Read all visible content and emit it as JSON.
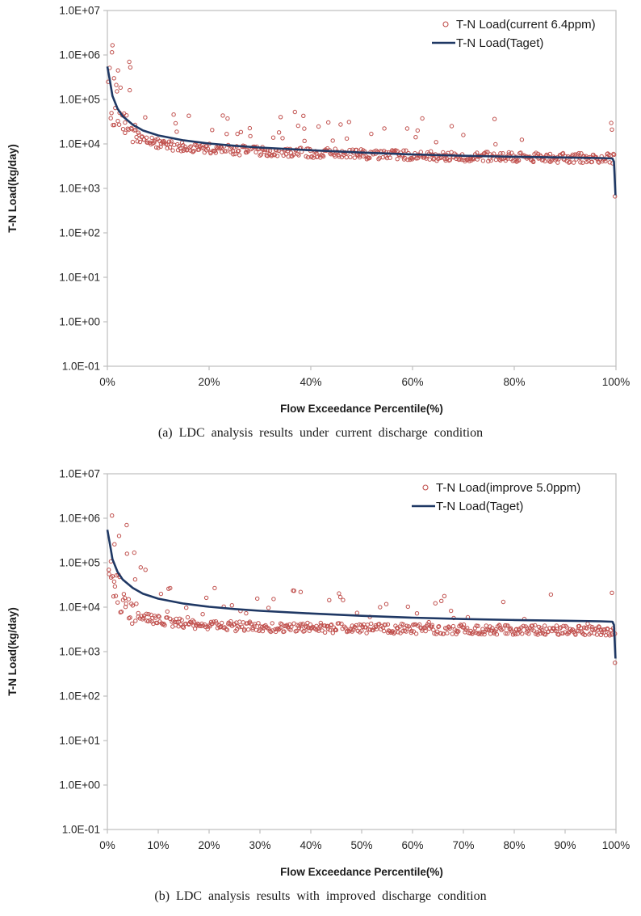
{
  "style": {
    "background": "#FFFFFF",
    "frame_color": "#BFBFBF",
    "tick_text_color": "#262626",
    "axis_title_color": "#1A1A1A",
    "scatter_color": "#C0504D",
    "line_color": "#1F3864"
  },
  "chart_data": [
    {
      "id": "a",
      "type": "scatter",
      "caption": "(a) LDC analysis results under current discharge condition",
      "xlabel": "Flow Exceedance Percentile(%)",
      "ylabel": "T-N Load(kg/day)",
      "grid": false,
      "x_axis": {
        "min": 0,
        "max": 100,
        "tick_values": [
          0,
          20,
          40,
          60,
          80,
          100
        ],
        "tick_labels": [
          "0%",
          "20%",
          "40%",
          "60%",
          "80%",
          "100%"
        ]
      },
      "y_axis": {
        "scale": "log",
        "min": 0.1,
        "max": 10000000,
        "tick_labels": [
          "1.0E+07",
          "1.0E+06",
          "1.0E+05",
          "1.0E+04",
          "1.0E+03",
          "1.0E+02",
          "1.0E+01",
          "1.0E+00",
          "1.0E-01"
        ]
      },
      "legend": {
        "position": "top-right-inside",
        "anchor_x": 552
      },
      "series": [
        {
          "name": "T-N Load(current 6.4ppm)",
          "kind": "scatter",
          "marker": "open-circle",
          "color": "#C0504D",
          "seed": 7,
          "n": 540,
          "x_range": [
            0.25,
            99.7
          ],
          "median_curve": [
            [
              0.25,
              120000
            ],
            [
              0.7,
              80000
            ],
            [
              1.5,
              45000
            ],
            [
              2.5,
              30000
            ],
            [
              4,
              19000
            ],
            [
              6,
              13500
            ],
            [
              9,
              10500
            ],
            [
              14,
              8800
            ],
            [
              20,
              7800
            ],
            [
              30,
              6800
            ],
            [
              40,
              6300
            ],
            [
              50,
              5900
            ],
            [
              60,
              5500
            ],
            [
              70,
              5200
            ],
            [
              80,
              5000
            ],
            [
              90,
              4850
            ],
            [
              99.7,
              4700
            ]
          ],
          "jitter_decades": 0.11,
          "wide_zone": {
            "x_max": 6,
            "extra_decades": 0.4
          },
          "outliers": {
            "x_split": 8,
            "rate_near": 0.28,
            "rate_mid": 0.1,
            "x_far": 72,
            "rate_far": 0.03,
            "lift_min": 0.15,
            "lift_max": 0.85,
            "near_boost": 1.4
          },
          "extra_points": [
            [
              0.9,
              1150000
            ],
            [
              4.3,
              700000
            ],
            [
              2.1,
              450000
            ],
            [
              1.3,
              300000
            ],
            [
              61,
              20000
            ],
            [
              99.2,
              21000
            ],
            [
              99.8,
              660
            ]
          ]
        },
        {
          "name": "T-N Load(Taget)",
          "kind": "line",
          "color": "#1F3864",
          "width": 2.6,
          "points": [
            [
              0,
              550000
            ],
            [
              0.5,
              260000
            ],
            [
              1,
              120000
            ],
            [
              2,
              62000
            ],
            [
              3,
              42000
            ],
            [
              5,
              27000
            ],
            [
              7,
              20000
            ],
            [
              10,
              15500
            ],
            [
              15,
              12000
            ],
            [
              20,
              10200
            ],
            [
              25,
              9100
            ],
            [
              30,
              8300
            ],
            [
              40,
              7200
            ],
            [
              50,
              6400
            ],
            [
              60,
              5800
            ],
            [
              70,
              5400
            ],
            [
              80,
              5150
            ],
            [
              90,
              4950
            ],
            [
              97,
              4800
            ],
            [
              99.3,
              4700
            ],
            [
              99.6,
              4000
            ],
            [
              99.9,
              700
            ]
          ]
        }
      ]
    },
    {
      "id": "b",
      "type": "scatter",
      "caption": "(b) LDC analysis results with improved discharge condition",
      "xlabel": "Flow Exceedance Percentile(%)",
      "ylabel": "T-N Load(kg/day)",
      "grid": false,
      "x_axis": {
        "min": 0,
        "max": 100,
        "tick_values": [
          0,
          10,
          20,
          30,
          40,
          50,
          60,
          70,
          80,
          90,
          100
        ],
        "tick_labels": [
          "0%",
          "10%",
          "20%",
          "30%",
          "40%",
          "50%",
          "60%",
          "70%",
          "80%",
          "90%",
          "100%"
        ]
      },
      "y_axis": {
        "scale": "log",
        "min": 0.1,
        "max": 10000000,
        "tick_labels": [
          "1.0E+07",
          "1.0E+06",
          "1.0E+05",
          "1.0E+04",
          "1.0E+03",
          "1.0E+02",
          "1.0E+01",
          "1.0E+00",
          "1.0E-01"
        ]
      },
      "legend": {
        "position": "top-right-inside",
        "anchor_x": 527
      },
      "series": [
        {
          "name": "T-N Load(improve 5.0ppm)",
          "kind": "scatter",
          "marker": "open-circle",
          "color": "#C0504D",
          "seed": 13,
          "n": 540,
          "x_range": [
            0.25,
            99.7
          ],
          "median_curve": [
            [
              0.25,
              100000
            ],
            [
              0.7,
              60000
            ],
            [
              1.5,
              30000
            ],
            [
              2.5,
              17000
            ],
            [
              4,
              10000
            ],
            [
              6,
              7000
            ],
            [
              9,
              5300
            ],
            [
              14,
              4400
            ],
            [
              20,
              3900
            ],
            [
              30,
              3600
            ],
            [
              40,
              3450
            ],
            [
              50,
              3350
            ],
            [
              60,
              3250
            ],
            [
              70,
              3150
            ],
            [
              80,
              3080
            ],
            [
              90,
              3020
            ],
            [
              99.7,
              2980
            ]
          ],
          "jitter_decades": 0.11,
          "wide_zone": {
            "x_max": 6,
            "extra_decades": 0.4
          },
          "outliers": {
            "x_split": 8,
            "rate_near": 0.28,
            "rate_mid": 0.11,
            "x_far": 72,
            "rate_far": 0.03,
            "lift_min": 0.15,
            "lift_max": 0.85,
            "near_boost": 1.4
          },
          "extra_points": [
            [
              0.9,
              1150000
            ],
            [
              3.8,
              700000
            ],
            [
              2.3,
              400000
            ],
            [
              1.4,
              260000
            ],
            [
              38,
              22000
            ],
            [
              99.2,
              21000
            ],
            [
              99.8,
              560
            ]
          ]
        },
        {
          "name": "T-N Load(Taget)",
          "kind": "line",
          "color": "#1F3864",
          "width": 2.6,
          "points": [
            [
              0,
              550000
            ],
            [
              0.5,
              260000
            ],
            [
              1,
              120000
            ],
            [
              2,
              62000
            ],
            [
              3,
              42000
            ],
            [
              5,
              27000
            ],
            [
              7,
              20000
            ],
            [
              10,
              15500
            ],
            [
              15,
              12000
            ],
            [
              20,
              10200
            ],
            [
              25,
              9100
            ],
            [
              30,
              8300
            ],
            [
              40,
              7200
            ],
            [
              50,
              6400
            ],
            [
              60,
              5800
            ],
            [
              70,
              5400
            ],
            [
              80,
              5150
            ],
            [
              90,
              4950
            ],
            [
              97,
              4800
            ],
            [
              99.3,
              4700
            ],
            [
              99.6,
              4000
            ],
            [
              99.9,
              700
            ]
          ]
        }
      ]
    }
  ]
}
